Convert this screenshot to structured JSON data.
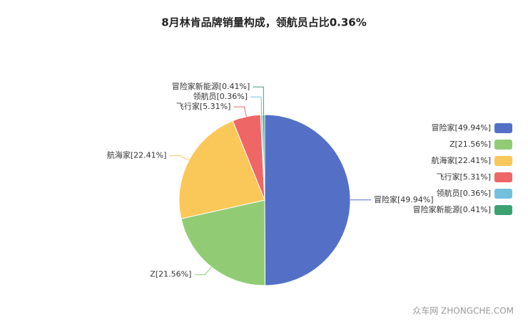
{
  "chart_data": {
    "type": "pie",
    "title": "8月林肯品牌销量构成，领航员占比0.36%",
    "categories": [
      "冒险家[49.94%]",
      "Z[21.56%]",
      "航海家[22.41%]",
      "飞行家[5.31%]",
      "领航员[0.36%]",
      "冒险家新能源[0.41%]"
    ],
    "values": [
      49.94,
      21.56,
      22.41,
      5.31,
      0.36,
      0.41
    ],
    "colors": [
      "#5470c6",
      "#91cc75",
      "#fac858",
      "#ee6666",
      "#73c0de",
      "#3ba272"
    ],
    "legend": "right",
    "watermark": "众车网 ZHONGCHE.COM"
  }
}
